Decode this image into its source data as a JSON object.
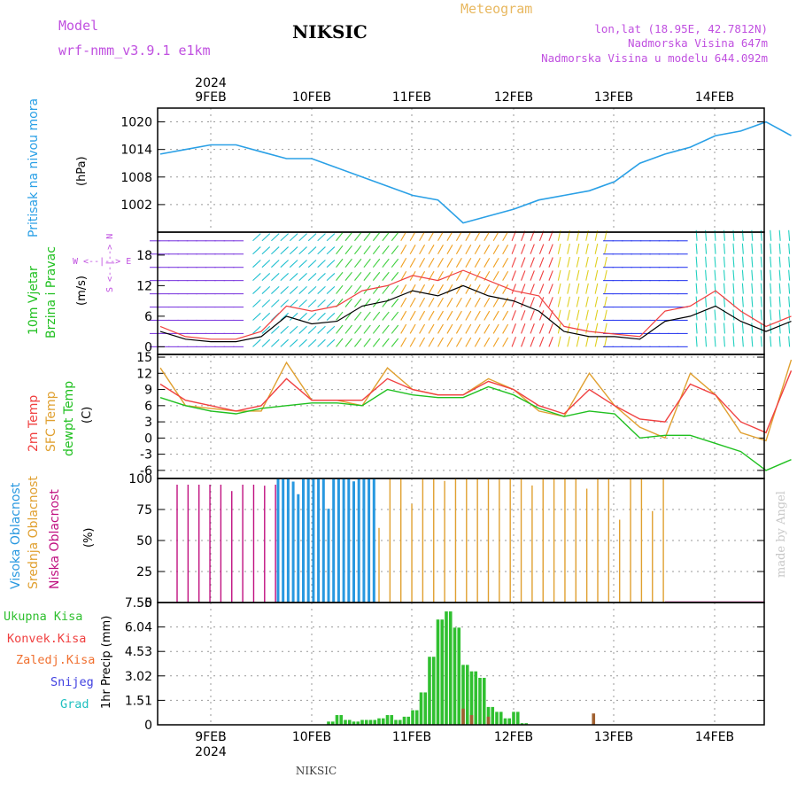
{
  "header": {
    "model_label": "Model",
    "model_name": "wrf-nmm_v3.9.1 e1km",
    "station": "NIKSIC",
    "meteogram_label": "Meteogram",
    "lonlat": "lon,lat (18.95E, 42.7812N)",
    "altitude": "Nadmorska Visina 647m",
    "model_altitude": "Nadmorska Visina u modelu 644.092m",
    "footer_station": "NIKSIC",
    "watermark": "made by Angel"
  },
  "colors": {
    "pressure": "#2aa0e6",
    "temp2m": "#f04040",
    "sfc": "#e0a030",
    "dewpt": "#20c020",
    "cloud_high": "#2898e0",
    "cloud_mid": "#e0a030",
    "cloud_low": "#c01080",
    "precip_total": "#30c030",
    "precip_conv": "#f04040",
    "precip_frz": "#f07030",
    "snow": "#4040e0",
    "grad": "#20c0c0",
    "title_purple": "#c050e0",
    "meteogram_orange": "#e8b860"
  },
  "chart_data": [
    {
      "type": "line",
      "title": "Pritisak na nivou mora",
      "ylabel": "(hPa)",
      "ylim": [
        996,
        1023
      ],
      "yticks": [
        "1020",
        "1014",
        "1008",
        "1002"
      ],
      "top_axis": {
        "year": "2024",
        "days": [
          "9FEB",
          "10FEB",
          "11FEB",
          "12FEB",
          "13FEB",
          "14FEB"
        ]
      },
      "grid": true,
      "x_unit": "hours since 9FEB 00:00",
      "x": [
        -12,
        -6,
        0,
        6,
        12,
        18,
        24,
        30,
        36,
        42,
        48,
        54,
        60,
        66,
        72,
        78,
        84,
        90,
        96,
        102,
        108,
        114,
        120,
        126,
        132,
        138
      ],
      "values": [
        1013,
        1014,
        1015,
        1015,
        1013.5,
        1012,
        1012,
        1010,
        1008,
        1006,
        1004,
        1003,
        998,
        999.5,
        1001,
        1003,
        1004,
        1005,
        1007,
        1011,
        1013,
        1014.5,
        1017,
        1018,
        1020,
        1017
      ]
    },
    {
      "type": "line",
      "title": "10m Vjetar Brzina i Pravac",
      "ylabel": "(m/s)",
      "ylim": [
        -1.5,
        22.5
      ],
      "yticks": [
        "18",
        "12",
        "6",
        "0"
      ],
      "compass": "W <--|--> E",
      "compass_vertical": "S <--|--> N",
      "series": [
        {
          "name": "",
          "x": [
            -12,
            -6,
            0,
            6,
            12,
            18,
            24,
            30,
            36,
            42,
            48,
            54,
            60,
            66,
            72,
            78,
            84,
            90,
            96,
            102,
            108,
            114,
            120,
            126,
            132,
            138
          ],
          "values": [
            3,
            1.5,
            1,
            1,
            2,
            6,
            4.5,
            5,
            8,
            9,
            11,
            10,
            12,
            10,
            9,
            7,
            3,
            2,
            2,
            1.5,
            5,
            6,
            8,
            5,
            3,
            5
          ]
        },
        {
          "name": "",
          "x": [
            -12,
            -6,
            0,
            6,
            12,
            18,
            24,
            30,
            36,
            42,
            48,
            54,
            60,
            66,
            72,
            78,
            84,
            90,
            96,
            102,
            108,
            114,
            120,
            126,
            132,
            138
          ],
          "values": [
            4,
            2,
            1.5,
            1.5,
            3,
            8,
            7,
            8,
            11,
            12,
            14,
            13,
            15,
            13,
            11,
            10,
            4,
            3,
            2.5,
            2,
            7,
            8,
            11,
            7,
            4,
            6
          ]
        }
      ],
      "barb_colors_by_segment": [
        "#8040e0",
        "#20c0d0",
        "#40d040",
        "#f0a020",
        "#f04040",
        "#e0d020",
        "#3040f0",
        "#20d0c0"
      ]
    },
    {
      "type": "line",
      "ylabel": "(C)",
      "ylim": [
        -7.5,
        15.5
      ],
      "yticks": [
        "15",
        "12",
        "9",
        "6",
        "3",
        "0",
        "-3",
        "-6"
      ],
      "legend": [
        "2m Temp",
        "SFC Temp",
        "dewpt Temp"
      ],
      "series": [
        {
          "name": "2m Temp",
          "x": [
            -12,
            -6,
            0,
            6,
            12,
            18,
            24,
            30,
            36,
            42,
            48,
            54,
            60,
            66,
            72,
            78,
            84,
            90,
            96,
            102,
            108,
            114,
            120,
            126,
            132,
            138
          ],
          "values": [
            10,
            7,
            6,
            5,
            6,
            11,
            7,
            7,
            7,
            11,
            9,
            8,
            8,
            10.5,
            9,
            6,
            4.5,
            9,
            6,
            3.5,
            3,
            10,
            8,
            3,
            1,
            12.5
          ]
        },
        {
          "name": "SFC Temp",
          "x": [
            -12,
            -6,
            0,
            6,
            12,
            18,
            24,
            30,
            36,
            42,
            48,
            54,
            60,
            66,
            72,
            78,
            84,
            90,
            96,
            102,
            108,
            114,
            120,
            126,
            132,
            138
          ],
          "values": [
            13,
            6,
            5.5,
            5,
            5,
            14,
            7,
            7,
            6,
            13,
            9,
            8,
            8,
            11,
            9,
            5,
            4,
            12,
            6,
            2,
            0,
            12,
            8,
            1,
            -0.5,
            14.5
          ]
        },
        {
          "name": "dewpt Temp",
          "x": [
            -12,
            -6,
            0,
            6,
            12,
            18,
            24,
            30,
            36,
            42,
            48,
            54,
            60,
            66,
            72,
            78,
            84,
            90,
            96,
            102,
            108,
            114,
            120,
            126,
            132,
            138
          ],
          "values": [
            7.5,
            6,
            5,
            4.5,
            5.5,
            6,
            6.5,
            6.5,
            6,
            9,
            8,
            7.5,
            7.5,
            9.5,
            8,
            5.5,
            4,
            5,
            4.5,
            0,
            0.5,
            0.5,
            -1,
            -2.5,
            -6,
            -4
          ]
        }
      ]
    },
    {
      "type": "bar",
      "ylabel": "(%)",
      "ylim": [
        0,
        100
      ],
      "yticks": [
        "100",
        "75",
        "50",
        "25",
        "0"
      ],
      "legend": [
        "Visoka Oblacnost",
        "Srednja Oblacnost",
        "Niska Oblacnost"
      ],
      "series": [
        {
          "name": "Visoka Oblacnost",
          "x_range": [
            16,
            40
          ],
          "level": 100
        },
        {
          "name": "Srednja Oblacnost",
          "x_range": [
            40,
            108
          ],
          "level": 100
        },
        {
          "name": "Niska Oblacnost",
          "x_range": [
            -8,
            16
          ],
          "level": 95
        }
      ]
    },
    {
      "type": "bar",
      "ylabel": "1hr Precip (mm)",
      "ylim": [
        0,
        7.55
      ],
      "yticks": [
        "7.55",
        "6.04",
        "4.53",
        "3.02",
        "1.51",
        "0"
      ],
      "legend": [
        "Ukupna Kisa",
        "Konvek.Kisa",
        "Zaledj.Kisa",
        "Snijeg",
        "Grad"
      ],
      "bottom_axis": {
        "year": "2024",
        "days": [
          "9FEB",
          "10FEB",
          "11FEB",
          "12FEB",
          "13FEB",
          "14FEB"
        ]
      },
      "x": [
        28,
        30,
        32,
        34,
        36,
        38,
        40,
        42,
        44,
        46,
        48,
        50,
        52,
        54,
        56,
        58,
        60,
        62,
        64,
        66,
        68,
        70,
        72,
        74
      ],
      "values": [
        0.2,
        0.6,
        0.3,
        0.2,
        0.3,
        0.3,
        0.4,
        0.6,
        0.3,
        0.5,
        0.9,
        2.0,
        4.2,
        6.5,
        7.0,
        6.0,
        3.7,
        3.3,
        2.9,
        1.1,
        0.8,
        0.4,
        0.8,
        0.1
      ]
    }
  ]
}
